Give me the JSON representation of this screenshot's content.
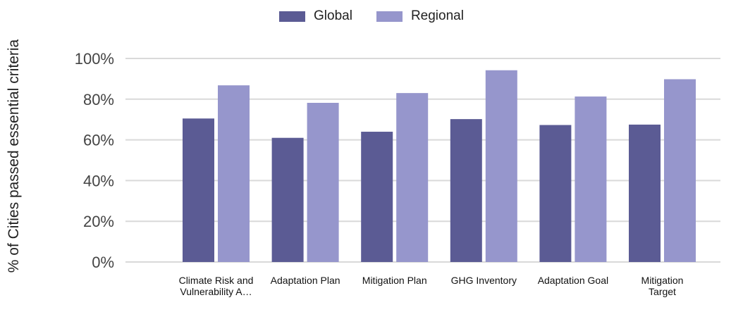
{
  "chart_data": {
    "type": "bar",
    "categories": [
      "Climate Risk and Vulnerability A…",
      "Adaptation Plan",
      "Mitigation Plan",
      "GHG Inventory",
      "Adaptation Goal",
      "Mitigation Target"
    ],
    "series": [
      {
        "name": "Global",
        "values": [
          70.5,
          61,
          64,
          70.2,
          67.3,
          67.5
        ],
        "color": "#5b5b94"
      },
      {
        "name": "Regional",
        "values": [
          86.8,
          78.2,
          83,
          94.2,
          81.3,
          89.8
        ],
        "color": "#9696cc"
      }
    ],
    "ylabel": "% of Cities passed essential criteria",
    "xlabel": "",
    "ylim": [
      0,
      100
    ],
    "yticks": [
      "0%",
      "20%",
      "40%",
      "60%",
      "80%",
      "100%"
    ],
    "grid": true,
    "legend_position": "top-center"
  }
}
